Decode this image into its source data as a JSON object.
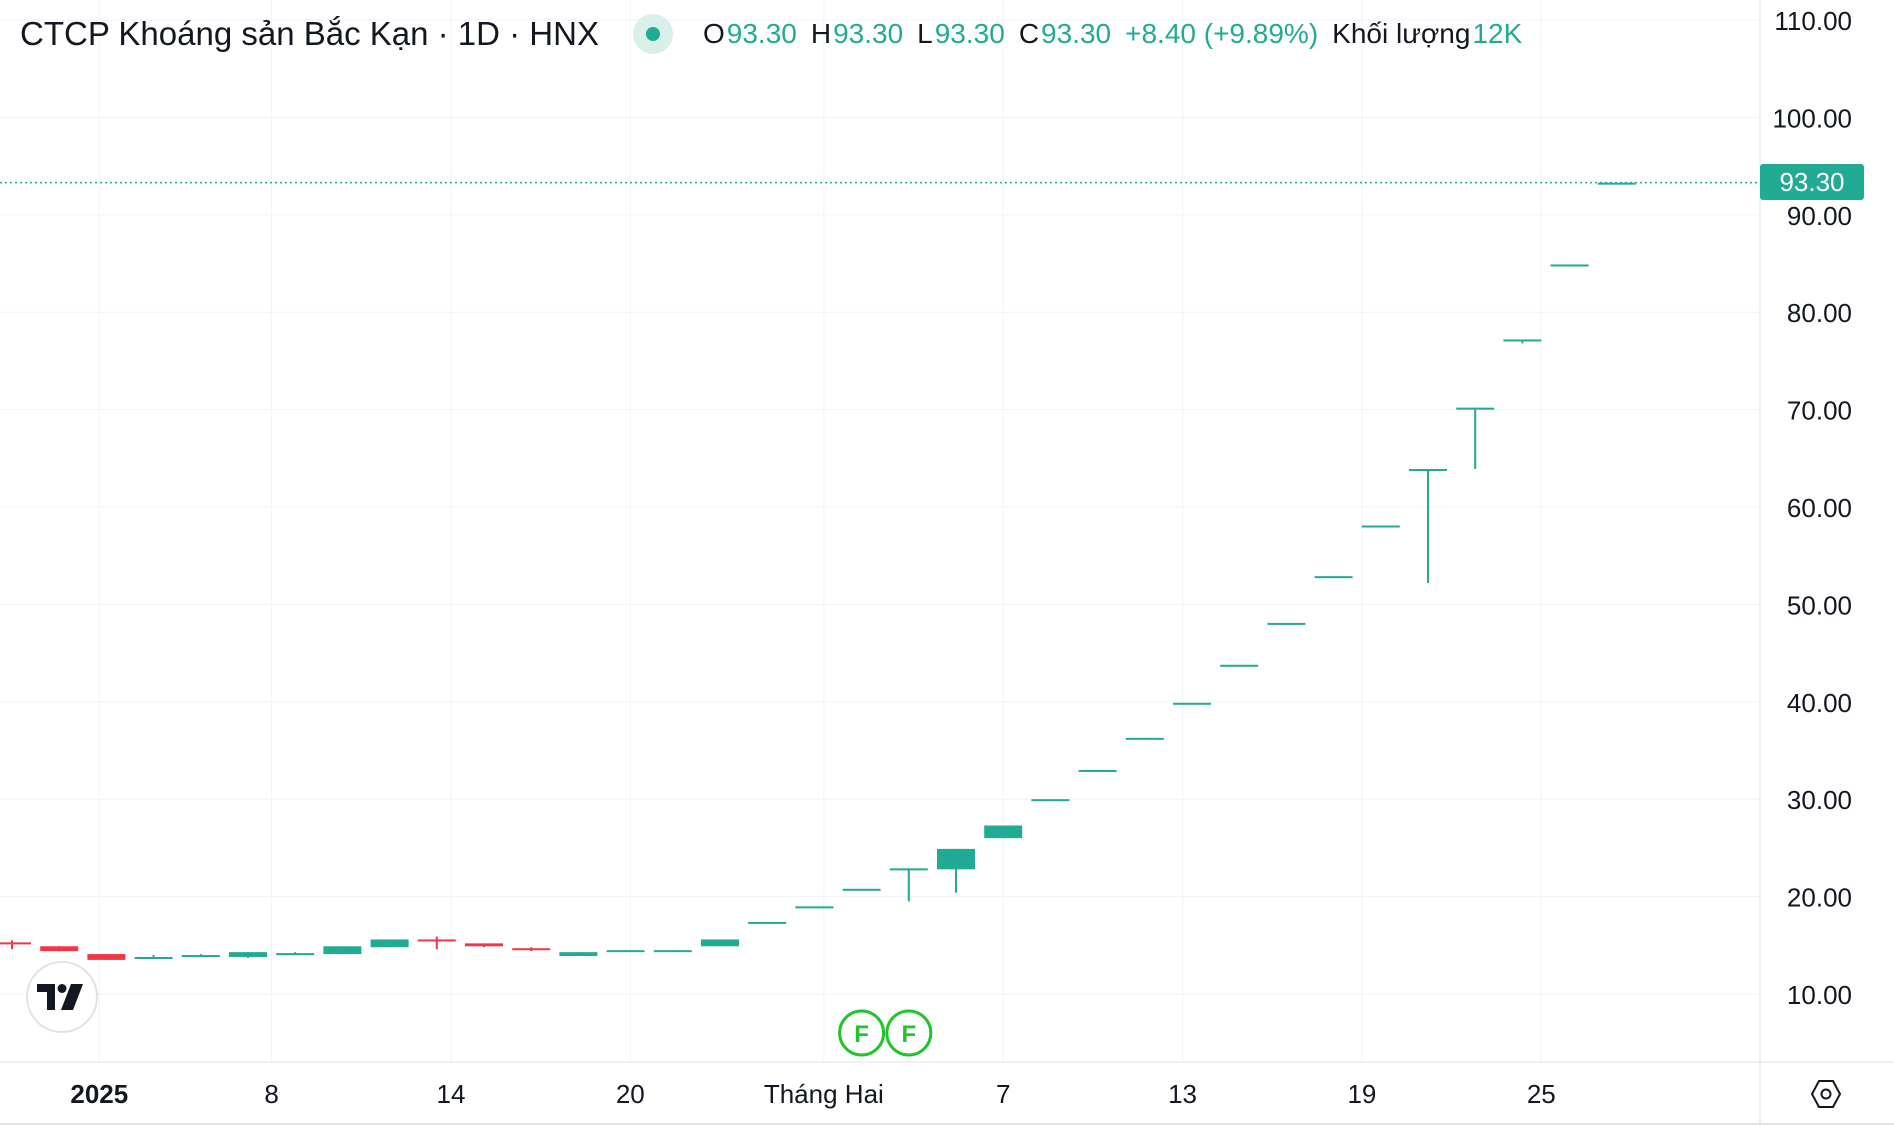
{
  "header": {
    "title": "CTCP Khoáng sản Bắc Kạn · 1D · HNX",
    "ohlc": {
      "o_label": "O",
      "o_value": "93.30",
      "h_label": "H",
      "h_value": "93.30",
      "l_label": "L",
      "l_value": "93.30",
      "c_label": "C",
      "c_value": "93.30",
      "change": "+8.40 (+9.89%)",
      "volume_label": "Khối lượng",
      "volume_value": "12K"
    }
  },
  "colors": {
    "up": "#22ab94",
    "down": "#f23645",
    "grid": "#f0f3fa",
    "text": "#131722",
    "event": "#22c32b"
  },
  "icons": {
    "logo": "tradingview-logo-icon",
    "settings": "settings-hexagon-icon",
    "status": "market-status-dot-icon"
  },
  "chart_data": {
    "type": "candlestick",
    "y_axis": {
      "ticks": [
        "10.00",
        "20.00",
        "30.00",
        "40.00",
        "50.00",
        "60.00",
        "70.00",
        "80.00",
        "90.00",
        "100.00",
        "110.00"
      ],
      "ylim": [
        4,
        112
      ]
    },
    "x_axis": {
      "labels": [
        "2025",
        "8",
        "14",
        "20",
        "Tháng Hai",
        "7",
        "13",
        "19",
        "25"
      ]
    },
    "last_price": {
      "value": 93.3,
      "label": "93.30"
    },
    "events": [
      {
        "label": "F",
        "date": "2025-01-31"
      },
      {
        "label": "F",
        "date": "2025-02-03"
      }
    ],
    "candles": [
      {
        "date": "2024-12-31",
        "o": 15.3,
        "h": 15.5,
        "l": 14.6,
        "c": 15.1
      },
      {
        "date": "2025-01-02",
        "o": 14.9,
        "h": 14.9,
        "l": 14.4,
        "c": 14.4
      },
      {
        "date": "2025-01-03",
        "o": 14.1,
        "h": 14.1,
        "l": 13.5,
        "c": 13.5
      },
      {
        "date": "2025-01-06",
        "o": 13.6,
        "h": 14.0,
        "l": 13.6,
        "c": 13.8
      },
      {
        "date": "2025-01-07",
        "o": 13.9,
        "h": 14.1,
        "l": 13.9,
        "c": 14.0
      },
      {
        "date": "2025-01-08",
        "o": 13.8,
        "h": 14.3,
        "l": 13.7,
        "c": 14.3
      },
      {
        "date": "2025-01-09",
        "o": 14.0,
        "h": 14.3,
        "l": 14.0,
        "c": 14.2
      },
      {
        "date": "2025-01-10",
        "o": 14.1,
        "h": 14.9,
        "l": 14.1,
        "c": 14.9
      },
      {
        "date": "2025-01-13",
        "o": 14.8,
        "h": 15.6,
        "l": 14.8,
        "c": 15.6
      },
      {
        "date": "2025-01-14",
        "o": 15.6,
        "h": 15.9,
        "l": 14.6,
        "c": 15.5
      },
      {
        "date": "2025-01-15",
        "o": 15.2,
        "h": 15.2,
        "l": 14.8,
        "c": 14.9
      },
      {
        "date": "2025-01-16",
        "o": 14.7,
        "h": 14.8,
        "l": 14.4,
        "c": 14.5
      },
      {
        "date": "2025-01-17",
        "o": 13.9,
        "h": 14.3,
        "l": 13.9,
        "c": 14.3
      },
      {
        "date": "2025-01-20",
        "o": 14.4,
        "h": 14.5,
        "l": 14.4,
        "c": 14.5
      },
      {
        "date": "2025-01-21",
        "o": 14.4,
        "h": 14.5,
        "l": 14.4,
        "c": 14.5
      },
      {
        "date": "2025-01-22",
        "o": 14.9,
        "h": 15.6,
        "l": 14.9,
        "c": 15.6
      },
      {
        "date": "2025-01-23",
        "o": 17.4,
        "h": 17.4,
        "l": 17.4,
        "c": 17.4
      },
      {
        "date": "2025-01-24",
        "o": 19.0,
        "h": 19.0,
        "l": 19.0,
        "c": 19.0
      },
      {
        "date": "2025-01-31",
        "o": 20.8,
        "h": 20.8,
        "l": 20.8,
        "c": 20.8
      },
      {
        "date": "2025-02-03",
        "o": 22.9,
        "h": 22.9,
        "l": 19.5,
        "c": 22.9
      },
      {
        "date": "2025-02-04",
        "o": 22.8,
        "h": 24.9,
        "l": 20.4,
        "c": 24.9
      },
      {
        "date": "2025-02-05",
        "o": 26.0,
        "h": 27.3,
        "l": 26.0,
        "c": 27.3
      },
      {
        "date": "2025-02-06",
        "o": 30.0,
        "h": 30.0,
        "l": 30.0,
        "c": 30.0
      },
      {
        "date": "2025-02-07",
        "o": 33.0,
        "h": 33.0,
        "l": 33.0,
        "c": 33.0
      },
      {
        "date": "2025-02-10",
        "o": 36.3,
        "h": 36.3,
        "l": 36.3,
        "c": 36.3
      },
      {
        "date": "2025-02-11",
        "o": 39.9,
        "h": 39.9,
        "l": 39.9,
        "c": 39.9
      },
      {
        "date": "2025-02-12",
        "o": 43.8,
        "h": 43.8,
        "l": 43.8,
        "c": 43.8
      },
      {
        "date": "2025-02-13",
        "o": 48.1,
        "h": 48.1,
        "l": 48.1,
        "c": 48.1
      },
      {
        "date": "2025-02-14",
        "o": 52.9,
        "h": 52.9,
        "l": 52.9,
        "c": 52.9
      },
      {
        "date": "2025-02-17",
        "o": 58.1,
        "h": 58.1,
        "l": 58.1,
        "c": 58.1
      },
      {
        "date": "2025-02-18",
        "o": 63.9,
        "h": 63.9,
        "l": 52.2,
        "c": 63.9
      },
      {
        "date": "2025-02-19",
        "o": 70.2,
        "h": 70.2,
        "l": 63.9,
        "c": 70.2
      },
      {
        "date": "2025-02-20",
        "o": 77.2,
        "h": 77.2,
        "l": 76.8,
        "c": 77.2
      },
      {
        "date": "2025-02-21",
        "o": 84.9,
        "h": 84.9,
        "l": 84.9,
        "c": 84.9
      },
      {
        "date": "2025-02-24",
        "o": 93.3,
        "h": 93.3,
        "l": 93.3,
        "c": 93.3
      }
    ]
  }
}
